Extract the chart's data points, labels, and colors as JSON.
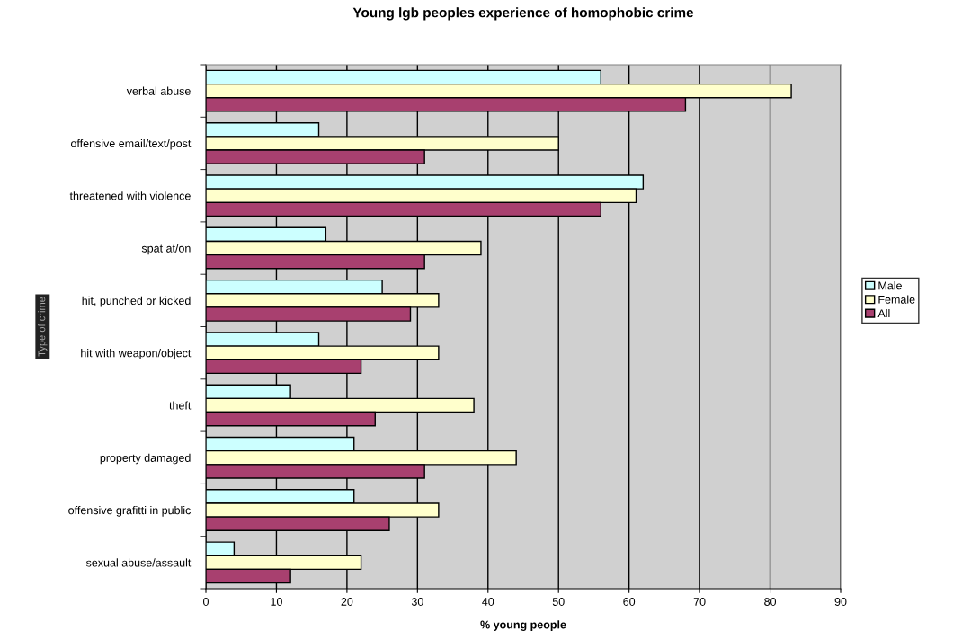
{
  "chart_data": {
    "type": "bar",
    "orientation": "horizontal",
    "title": "Young lgb peoples experience of homophobic crime",
    "xlabel": "% young people",
    "ylabel": "Type of crime",
    "categories": [
      "verbal abuse",
      "offensive email/text/post",
      "threatened with violence",
      "spat at/on",
      "hit, punched or kicked",
      "hit with weapon/object",
      "theft",
      "property damaged",
      "offensive grafitti in public",
      "sexual abuse/assault"
    ],
    "series": [
      {
        "name": "Male",
        "color": "#ccffff",
        "values": [
          56,
          16,
          62,
          17,
          25,
          16,
          12,
          21,
          21,
          4
        ]
      },
      {
        "name": "Female",
        "color": "#ffffcc",
        "values": [
          83,
          50,
          61,
          39,
          33,
          33,
          38,
          44,
          33,
          22
        ]
      },
      {
        "name": "All",
        "color": "#a8406f",
        "values": [
          68,
          31,
          56,
          31,
          29,
          22,
          24,
          31,
          26,
          12
        ]
      }
    ],
    "xlim": [
      0,
      90
    ],
    "xticks": [
      0,
      10,
      20,
      30,
      40,
      50,
      60,
      70,
      80,
      90
    ],
    "grid": "x",
    "legend": "right"
  }
}
